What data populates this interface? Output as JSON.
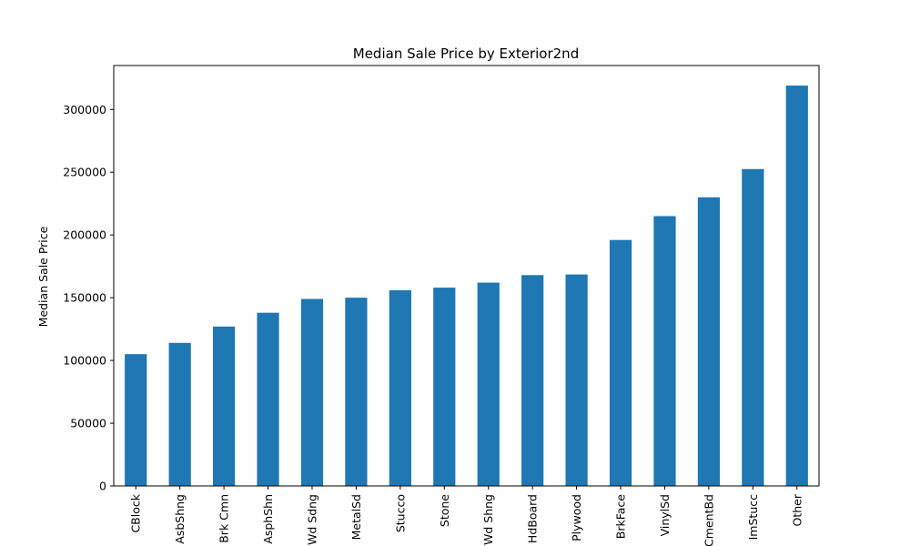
{
  "chart_data": {
    "type": "bar",
    "title": "Median Sale Price by Exterior2nd",
    "xlabel": "",
    "ylabel": "Median Sale Price",
    "ylim": [
      0,
      335000
    ],
    "yticks": [
      0,
      50000,
      100000,
      150000,
      200000,
      250000,
      300000
    ],
    "ytick_labels": [
      "0",
      "50000",
      "100000",
      "150000",
      "200000",
      "250000",
      "300000"
    ],
    "categories": [
      "CBlock",
      "AsbShng",
      "Brk Cmn",
      "AsphShn",
      "Wd Sdng",
      "MetalSd",
      "Stucco",
      "Stone",
      "Wd Shng",
      "HdBoard",
      "Plywood",
      "BrkFace",
      "VinylSd",
      "CmentBd",
      "ImStucc",
      "Other"
    ],
    "xtick_labels": [
      "CBlock",
      "AsbShng",
      "Brk Cmn",
      "AsphShn",
      "Wd Sdng",
      "MetalSd",
      "Stucco",
      "Stone",
      "Wd Shng",
      "HdBoard",
      "Plywood",
      "BrkFace",
      "VinylSd",
      "CmentBd",
      "ImStucc",
      "Other"
    ],
    "values": [
      105000,
      114000,
      127000,
      138000,
      149000,
      150000,
      156000,
      158000,
      162000,
      168000,
      168500,
      196000,
      215000,
      230000,
      252500,
      319000
    ],
    "bar_color": "#1f77b4",
    "grid": false,
    "legend": "none"
  }
}
